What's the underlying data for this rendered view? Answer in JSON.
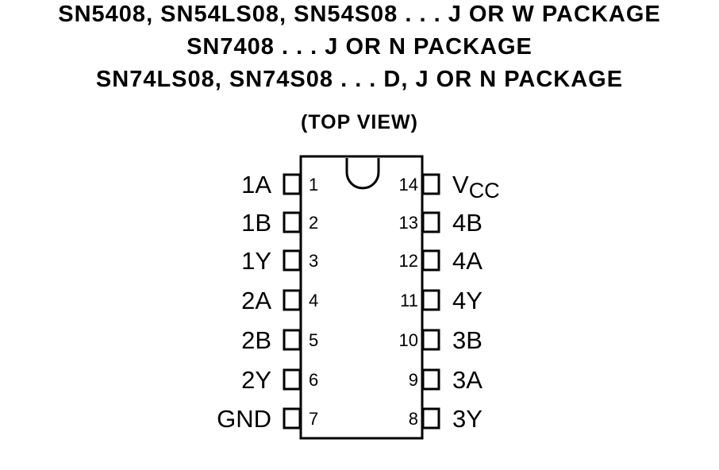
{
  "header": {
    "line1": "SN5408, SN54LS08, SN54S08 . . . J OR W PACKAGE",
    "line2": "SN7408 . . . J OR N PACKAGE",
    "line3": "SN74LS08, SN74S08 . . . D, J OR N PACKAGE",
    "view": "(TOP VIEW)"
  },
  "pins": {
    "left": [
      {
        "number": "1",
        "name": "1A"
      },
      {
        "number": "2",
        "name": "1B"
      },
      {
        "number": "3",
        "name": "1Y"
      },
      {
        "number": "4",
        "name": "2A"
      },
      {
        "number": "5",
        "name": "2B"
      },
      {
        "number": "6",
        "name": "2Y"
      },
      {
        "number": "7",
        "name": "GND"
      }
    ],
    "right": [
      {
        "number": "14",
        "name": "V",
        "subscript": "CC"
      },
      {
        "number": "13",
        "name": "4B"
      },
      {
        "number": "12",
        "name": "4A"
      },
      {
        "number": "11",
        "name": "4Y"
      },
      {
        "number": "10",
        "name": "3B"
      },
      {
        "number": "9",
        "name": "3A"
      },
      {
        "number": "8",
        "name": "3Y"
      }
    ]
  }
}
